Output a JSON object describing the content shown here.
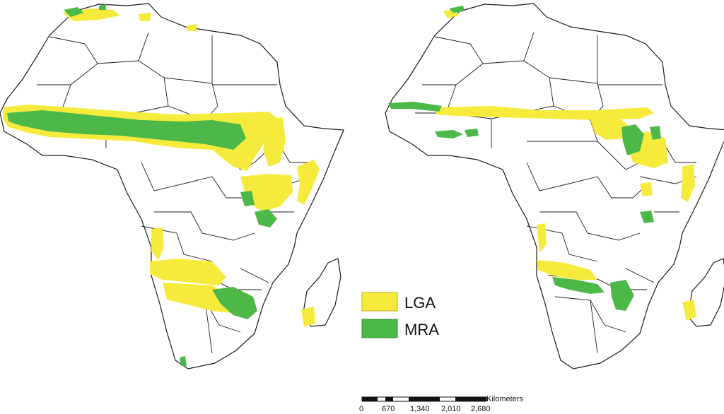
{
  "legend": {
    "items": [
      {
        "label": "LGA",
        "color": "#f6eb3c"
      },
      {
        "label": "MRA",
        "color": "#4cb848"
      }
    ]
  },
  "scale_bar": {
    "unit": "Kilometers",
    "ticks": [
      "0",
      "670",
      "1,340",
      "2,010",
      "2,680"
    ]
  },
  "colors": {
    "land": "#ffffff",
    "border": "#1a1a1a",
    "lga": "#f6eb3c",
    "mra": "#4cb848"
  }
}
